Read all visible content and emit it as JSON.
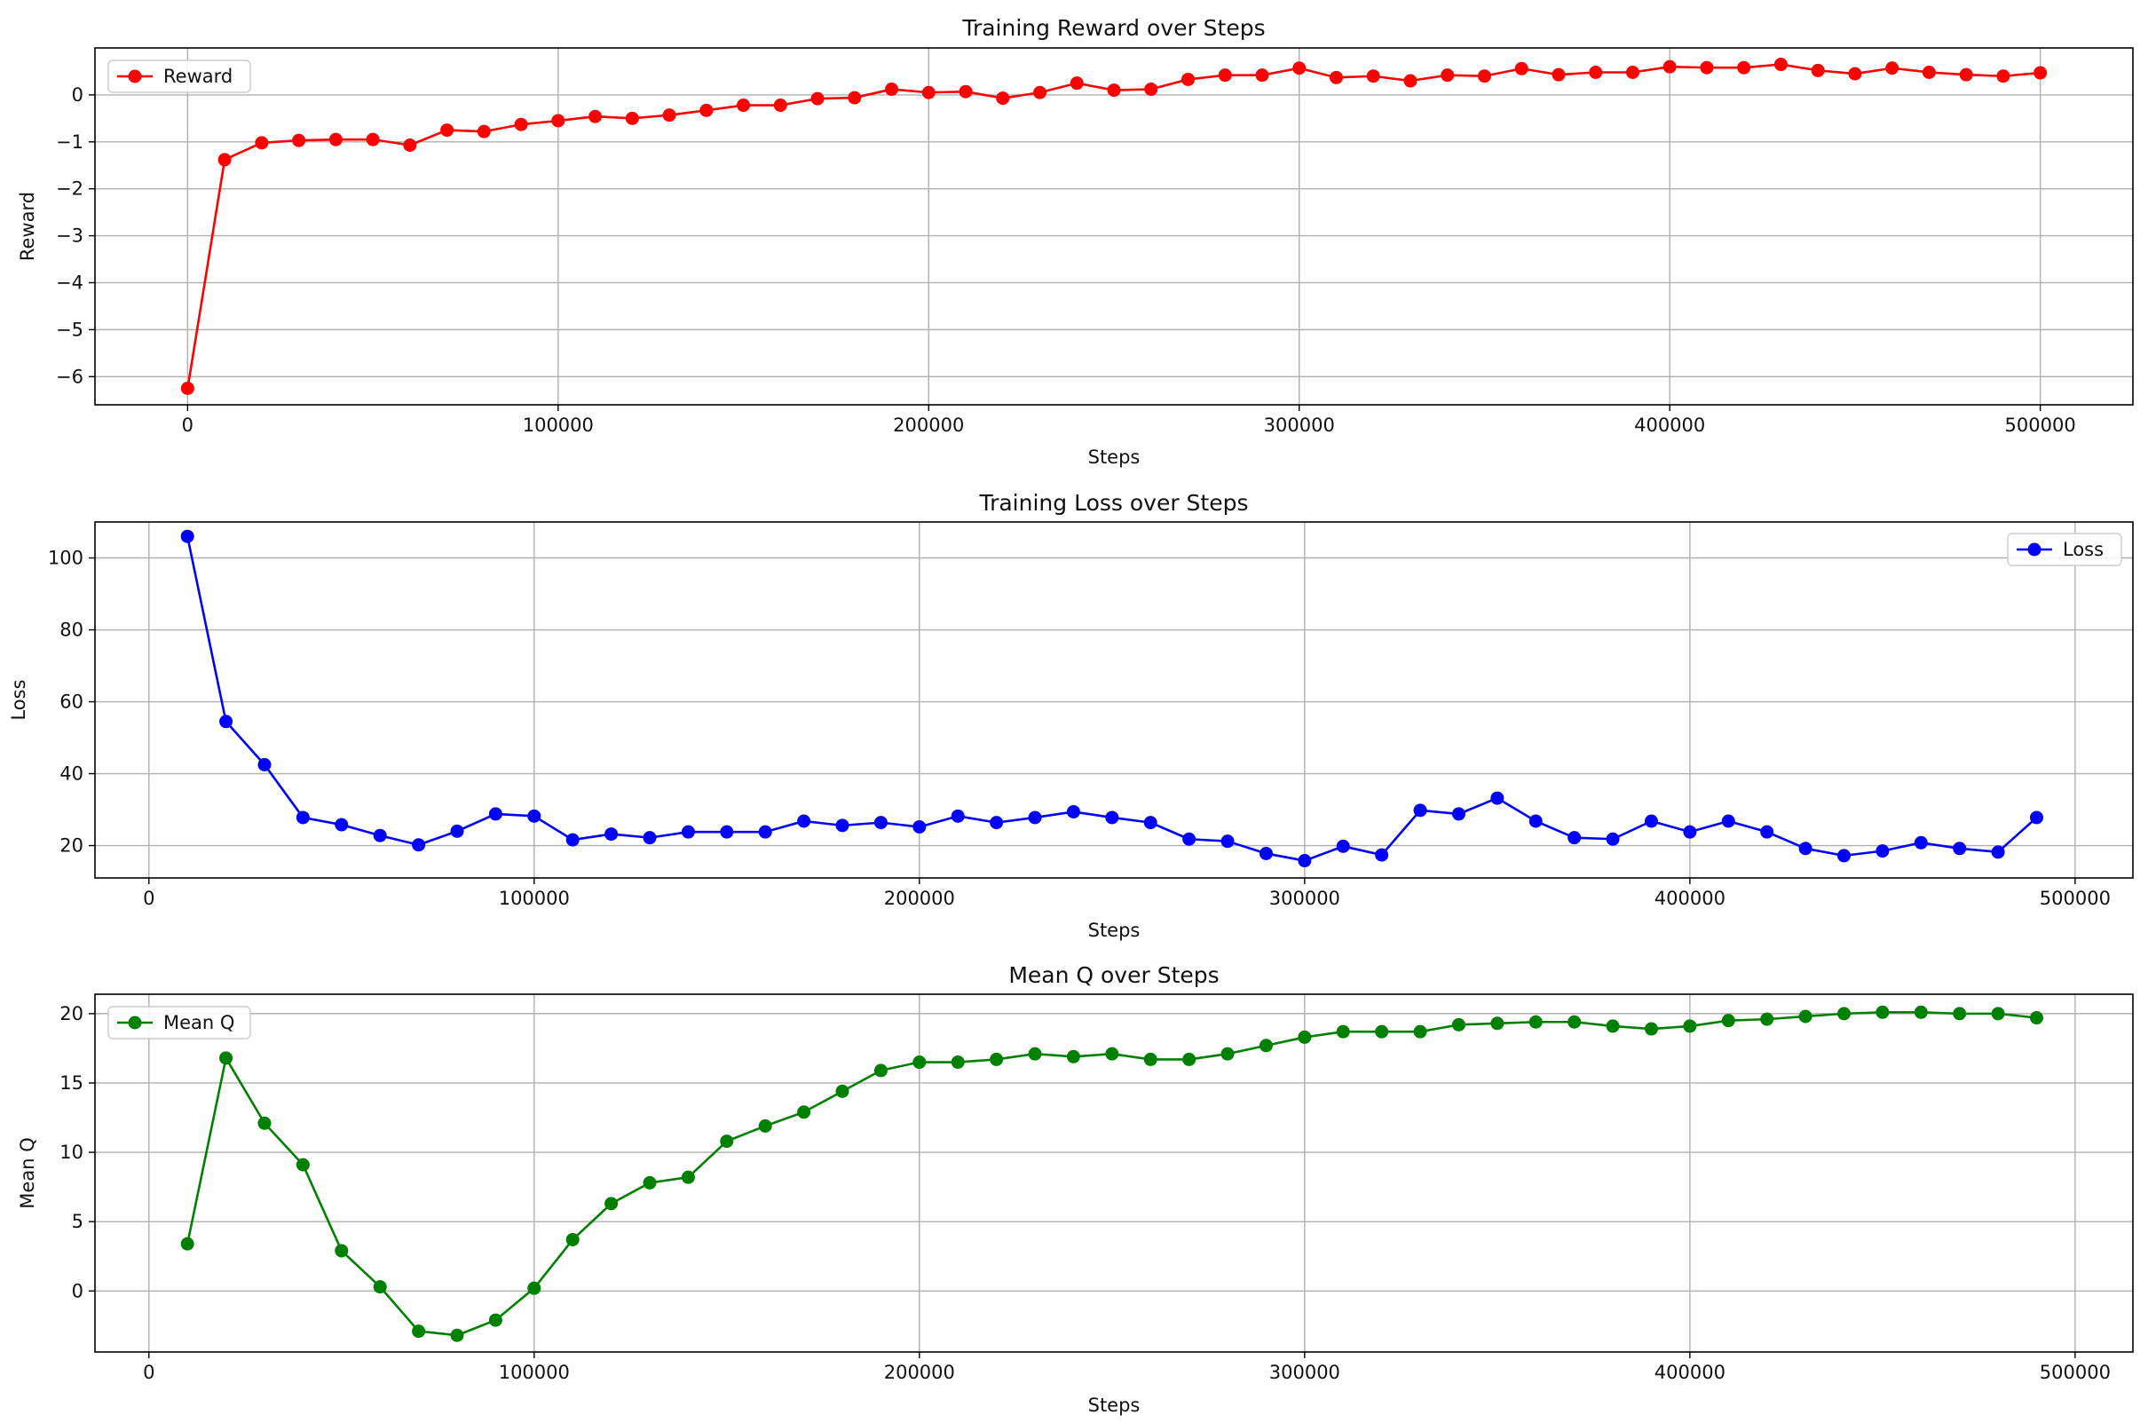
{
  "chart_data": [
    {
      "type": "line",
      "title": "Training Reward over Steps",
      "xlabel": "Steps",
      "ylabel": "Reward",
      "xlim": [
        -25000,
        525000
      ],
      "ylim": [
        -6.6,
        1.0
      ],
      "xticks": [
        0,
        100000,
        200000,
        300000,
        400000,
        500000
      ],
      "yticks": [
        0,
        -1,
        -2,
        -3,
        -4,
        -5,
        -6
      ],
      "xtick_labels": [
        "0",
        "100000",
        "200000",
        "300000",
        "400000",
        "500000"
      ],
      "ytick_labels": [
        "0",
        "−1",
        "−2",
        "−3",
        "−4",
        "−5",
        "−6"
      ],
      "grid": true,
      "legend": "upper-left",
      "color": "#ff0000",
      "marker": "circle",
      "series": [
        {
          "name": "Reward",
          "x": [
            0,
            10000,
            20000,
            30000,
            40000,
            50000,
            60000,
            70000,
            80000,
            90000,
            100000,
            110000,
            120000,
            130000,
            140000,
            150000,
            160000,
            170000,
            180000,
            190000,
            200000,
            210000,
            220000,
            230000,
            240000,
            250000,
            260000,
            270000,
            280000,
            290000,
            300000,
            310000,
            320000,
            330000,
            340000,
            350000,
            360000,
            370000,
            380000,
            390000,
            400000,
            410000,
            420000,
            430000,
            440000,
            450000,
            460000,
            470000,
            480000,
            490000,
            500000
          ],
          "values": [
            -6.25,
            -1.38,
            -1.02,
            -0.97,
            -0.95,
            -0.95,
            -1.07,
            -0.75,
            -0.78,
            -0.63,
            -0.55,
            -0.46,
            -0.5,
            -0.43,
            -0.33,
            -0.22,
            -0.22,
            -0.08,
            -0.06,
            0.12,
            0.05,
            0.07,
            -0.07,
            0.05,
            0.25,
            0.1,
            0.12,
            0.33,
            0.42,
            0.42,
            0.57,
            0.37,
            0.4,
            0.3,
            0.42,
            0.4,
            0.56,
            0.43,
            0.48,
            0.48,
            0.6,
            0.58,
            0.58,
            0.65,
            0.52,
            0.45,
            0.57,
            0.48,
            0.43,
            0.4,
            0.47
          ]
        }
      ]
    },
    {
      "type": "line",
      "title": "Training Loss over Steps",
      "xlabel": "Steps",
      "ylabel": "Loss",
      "xlim": [
        -14000,
        515000
      ],
      "ylim": [
        11,
        110
      ],
      "xticks": [
        0,
        100000,
        200000,
        300000,
        400000,
        500000
      ],
      "yticks": [
        20,
        40,
        60,
        80,
        100
      ],
      "xtick_labels": [
        "0",
        "100000",
        "200000",
        "300000",
        "400000",
        "500000"
      ],
      "ytick_labels": [
        "20",
        "40",
        "60",
        "80",
        "100"
      ],
      "grid": true,
      "legend": "upper-right",
      "color": "#0000ff",
      "marker": "circle",
      "series": [
        {
          "name": "Loss",
          "x": [
            10000,
            20000,
            30000,
            40000,
            50000,
            60000,
            70000,
            80000,
            90000,
            100000,
            110000,
            120000,
            130000,
            140000,
            150000,
            160000,
            170000,
            180000,
            190000,
            200000,
            210000,
            220000,
            230000,
            240000,
            250000,
            260000,
            270000,
            280000,
            290000,
            300000,
            310000,
            320000,
            330000,
            340000,
            350000,
            360000,
            370000,
            380000,
            390000,
            400000,
            410000,
            420000,
            430000,
            440000,
            450000,
            460000,
            470000,
            480000,
            490000
          ],
          "values": [
            106,
            54.5,
            42.5,
            27.8,
            25.8,
            22.8,
            20.2,
            24,
            28.8,
            28.2,
            21.6,
            23.2,
            22.2,
            23.8,
            23.8,
            23.8,
            26.8,
            25.6,
            26.4,
            25.2,
            28.2,
            26.4,
            27.8,
            29.4,
            27.8,
            26.4,
            21.8,
            21.2,
            17.8,
            15.8,
            19.8,
            17.4,
            29.8,
            28.8,
            33.2,
            26.8,
            22.2,
            21.8,
            26.8,
            23.8,
            26.8,
            23.8,
            19.2,
            17.2,
            18.5,
            20.8,
            19.2,
            18.2,
            27.8
          ]
        }
      ]
    },
    {
      "type": "line",
      "title": "Mean Q over Steps",
      "xlabel": "Steps",
      "ylabel": "Mean Q",
      "xlim": [
        -14000,
        515000
      ],
      "ylim": [
        -4.4,
        21.4
      ],
      "xticks": [
        0,
        100000,
        200000,
        300000,
        400000,
        500000
      ],
      "yticks": [
        0,
        5,
        10,
        15,
        20
      ],
      "xtick_labels": [
        "0",
        "100000",
        "200000",
        "300000",
        "400000",
        "500000"
      ],
      "ytick_labels": [
        "0",
        "5",
        "10",
        "15",
        "20"
      ],
      "grid": true,
      "legend": "upper-left",
      "color": "#008000",
      "marker": "circle",
      "series": [
        {
          "name": "Mean Q",
          "x": [
            10000,
            20000,
            30000,
            40000,
            50000,
            60000,
            70000,
            80000,
            90000,
            100000,
            110000,
            120000,
            130000,
            140000,
            150000,
            160000,
            170000,
            180000,
            190000,
            200000,
            210000,
            220000,
            230000,
            240000,
            250000,
            260000,
            270000,
            280000,
            290000,
            300000,
            310000,
            320000,
            330000,
            340000,
            350000,
            360000,
            370000,
            380000,
            390000,
            400000,
            410000,
            420000,
            430000,
            440000,
            450000,
            460000,
            470000,
            480000,
            490000
          ],
          "values": [
            3.4,
            16.8,
            12.1,
            9.1,
            2.9,
            0.3,
            -2.9,
            -3.2,
            -2.1,
            0.2,
            3.7,
            6.3,
            7.8,
            8.2,
            10.8,
            11.9,
            12.9,
            14.4,
            15.9,
            16.5,
            16.5,
            16.7,
            17.1,
            16.9,
            17.1,
            16.7,
            16.7,
            17.1,
            17.7,
            18.3,
            18.7,
            18.7,
            18.7,
            19.2,
            19.3,
            19.4,
            19.4,
            19.1,
            18.9,
            19.1,
            19.5,
            19.6,
            19.8,
            20.0,
            20.1,
            20.1,
            20.0,
            20.0,
            19.7
          ]
        }
      ]
    }
  ]
}
